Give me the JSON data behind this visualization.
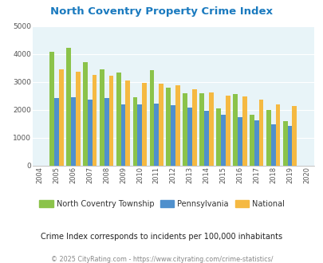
{
  "title": "North Coventry Property Crime Index",
  "years": [
    2004,
    2005,
    2006,
    2007,
    2008,
    2009,
    2010,
    2011,
    2012,
    2013,
    2014,
    2015,
    2016,
    2017,
    2018,
    2019,
    2020
  ],
  "north_coventry": [
    null,
    4080,
    4230,
    3720,
    3450,
    3350,
    2450,
    3420,
    2800,
    2600,
    2600,
    2050,
    2560,
    1820,
    2000,
    1610,
    null
  ],
  "pennsylvania": [
    null,
    2420,
    2460,
    2360,
    2430,
    2190,
    2200,
    2230,
    2160,
    2080,
    1970,
    1840,
    1750,
    1640,
    1490,
    1420,
    null
  ],
  "national": [
    null,
    3460,
    3360,
    3270,
    3240,
    3060,
    2960,
    2950,
    2890,
    2750,
    2640,
    2500,
    2470,
    2380,
    2190,
    2140,
    null
  ],
  "colors": {
    "north_coventry": "#8bc34a",
    "pennsylvania": "#4f90cd",
    "national": "#f5b942"
  },
  "ylim": [
    0,
    5000
  ],
  "yticks": [
    0,
    1000,
    2000,
    3000,
    4000,
    5000
  ],
  "bg_color": "#e8f4f8",
  "grid_color": "#ffffff",
  "bar_width": 0.28,
  "subtitle": "Crime Index corresponds to incidents per 100,000 inhabitants",
  "footer": "© 2025 CityRating.com - https://www.cityrating.com/crime-statistics/",
  "legend_labels": [
    "North Coventry Township",
    "Pennsylvania",
    "National"
  ],
  "title_color": "#1a7abf",
  "subtitle_color": "#222222",
  "footer_color": "#888888"
}
